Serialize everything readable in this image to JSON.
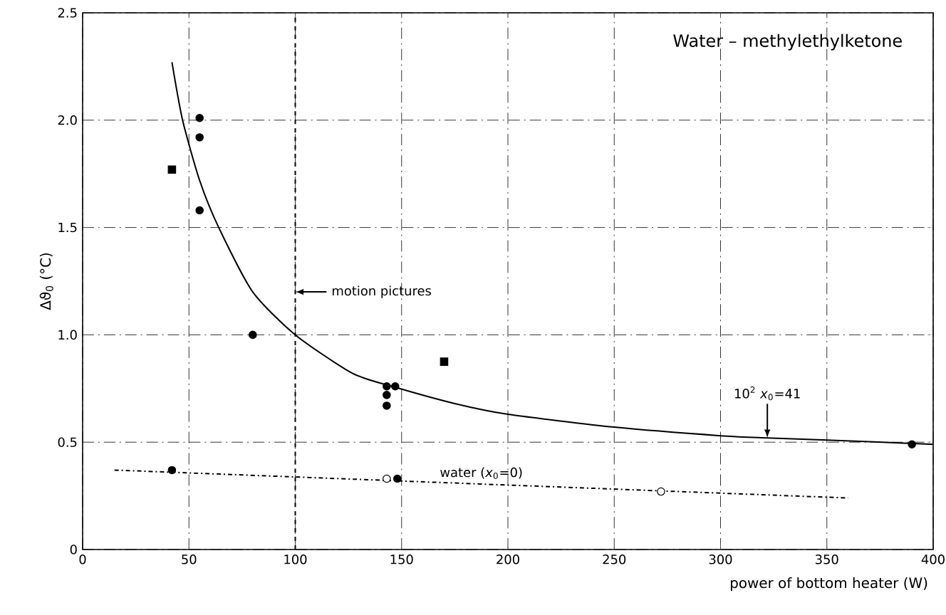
{
  "chart_data": {
    "type": "scatter",
    "title": "Water – methylethylketone",
    "xlabel": "power of bottom heater (W)",
    "ylabel": "Δϑ$_{0}$ (°C)",
    "xlim": [
      0,
      400
    ],
    "xticks": [
      0,
      50,
      100,
      150,
      200,
      250,
      300,
      350,
      400
    ],
    "ylim": [
      0,
      2.5
    ],
    "yticks": [
      0,
      0.5,
      {
        "value": 1,
        "label": "1.0"
      },
      1.5,
      {
        "value": 2,
        "label": "2.0"
      },
      2.5
    ],
    "grid": true,
    "legend": false,
    "series": [
      {
        "type": "line",
        "color": "#000000",
        "line_style": "solid",
        "marker": "none",
        "x": [
          42,
          47,
          55,
          64,
          80,
          100,
          127,
          147,
          175,
          200,
          250,
          300,
          322,
          350,
          400
        ],
        "values": [
          2.27,
          2.0,
          1.72,
          1.5,
          1.2,
          1.0,
          0.82,
          0.756,
          0.68,
          0.63,
          0.57,
          0.53,
          0.52,
          0.51,
          0.49
        ]
      },
      {
        "color": "#000000",
        "marker": "circle",
        "x": [
          55,
          55,
          55,
          80,
          143,
          143,
          143,
          147,
          390
        ],
        "values": [
          2.01,
          1.92,
          1.58,
          1.0,
          0.76,
          0.72,
          0.67,
          0.76,
          0.49
        ]
      },
      {
        "color": "#000000",
        "marker": "square",
        "x": [
          42,
          170
        ],
        "values": [
          1.77,
          0.875
        ]
      },
      {
        "type": "line",
        "name": "water (*x*$_{0}$=0)",
        "color": "#000000",
        "line_style": "dashed",
        "marker": "none",
        "x": [
          15,
          360
        ],
        "values": [
          0.37,
          0.24
        ]
      },
      {
        "color": "#000000",
        "marker": "circle",
        "x": [
          42,
          148
        ],
        "values": [
          0.37,
          0.33
        ]
      },
      {
        "color": "#ffffff",
        "marker": "circle",
        "x": [
          143,
          272
        ],
        "values": [
          0.33,
          0.27
        ]
      }
    ],
    "ref_lines": [
      {
        "axis": "x",
        "value": 100,
        "label": "motion pictures",
        "line_style": "dashed"
      }
    ],
    "annotations": [
      {
        "text": "10$^{2}$ *x*$_{0}$=41",
        "x": 322,
        "y": 0.52
      }
    ]
  }
}
